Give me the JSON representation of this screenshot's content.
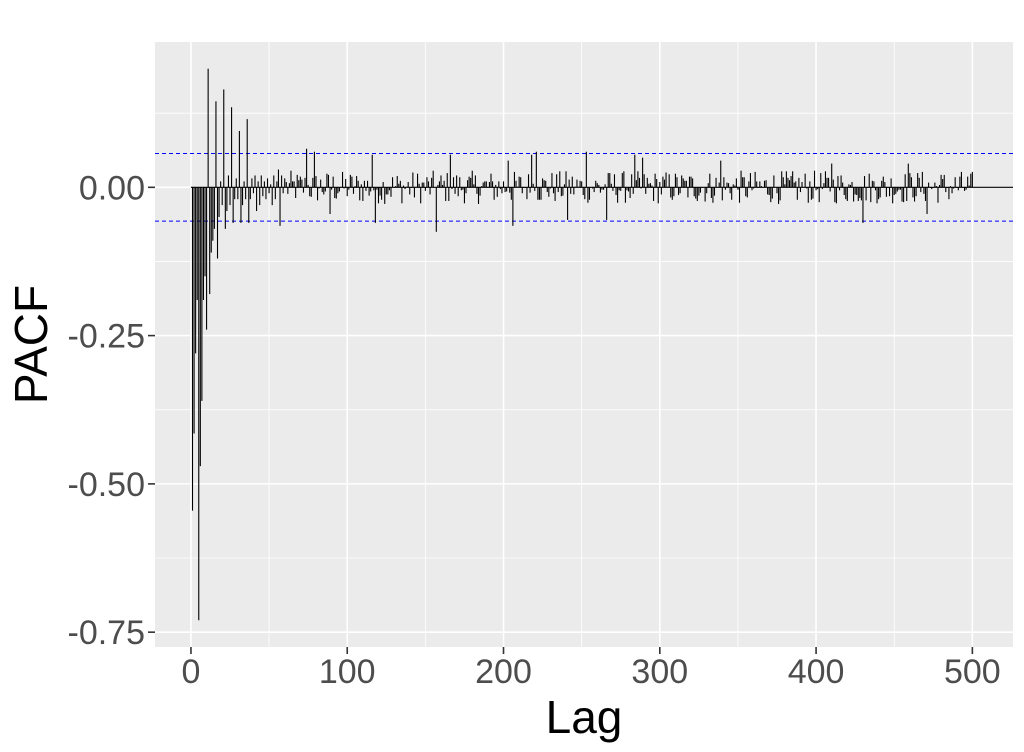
{
  "chart_data": {
    "type": "bar",
    "subtype": "pacf",
    "xlabel": "Lag",
    "ylabel": "PACF",
    "xlim": [
      -23,
      526
    ],
    "ylim": [
      -0.775,
      0.245
    ],
    "x_ticks": [
      0,
      100,
      200,
      300,
      400,
      500
    ],
    "x_tick_labels": [
      "0",
      "100",
      "200",
      "300",
      "400",
      "500"
    ],
    "y_ticks": [
      -0.75,
      -0.5,
      -0.25,
      0.0
    ],
    "y_tick_labels": [
      "-0.75",
      "-0.50",
      "-0.25",
      "0.00"
    ],
    "confidence_bound": 0.057,
    "grid": true,
    "legend": "none",
    "colors": {
      "panel": "#ebebeb",
      "grid": "#ffffff",
      "bars": "#000000",
      "ci": "#0000ff",
      "tick_text": "#4d4d4d"
    },
    "lags_1_to_60": [
      -0.545,
      -0.415,
      -0.28,
      -0.19,
      -0.73,
      -0.47,
      -0.36,
      -0.19,
      -0.15,
      -0.24,
      0.2,
      -0.18,
      -0.11,
      -0.09,
      -0.07,
      0.145,
      -0.12,
      -0.05,
      0.01,
      -0.03,
      0.165,
      -0.07,
      -0.04,
      0.02,
      -0.03,
      0.135,
      -0.06,
      -0.02,
      0.015,
      -0.02,
      0.095,
      -0.06,
      -0.03,
      0.01,
      -0.02,
      0.115,
      -0.06,
      -0.02,
      0.015,
      -0.01,
      0.02,
      -0.04,
      0.01,
      -0.03,
      0.02,
      -0.015,
      0.01,
      -0.02,
      0.015,
      -0.01,
      0.005,
      -0.03,
      0.02,
      -0.02,
      0.01,
      0.03,
      -0.065,
      0.02,
      -0.01,
      0.015
    ],
    "remaining_lags": {
      "from": 61,
      "to": 500,
      "amplitude": 0.028,
      "peaks": [
        [
          74,
          0.065
        ],
        [
          79,
          0.06
        ],
        [
          89,
          -0.045
        ],
        [
          116,
          0.055
        ],
        [
          118,
          -0.06
        ],
        [
          157,
          -0.075
        ],
        [
          166,
          0.055
        ],
        [
          203,
          0.045
        ],
        [
          206,
          -0.065
        ],
        [
          218,
          0.055
        ],
        [
          221,
          0.06
        ],
        [
          241,
          -0.055
        ],
        [
          253,
          0.06
        ],
        [
          266,
          -0.055
        ],
        [
          284,
          0.055
        ],
        [
          289,
          0.05
        ],
        [
          339,
          0.045
        ],
        [
          410,
          0.04
        ],
        [
          430,
          -0.06
        ],
        [
          459,
          0.04
        ],
        [
          471,
          -0.045
        ]
      ]
    }
  }
}
